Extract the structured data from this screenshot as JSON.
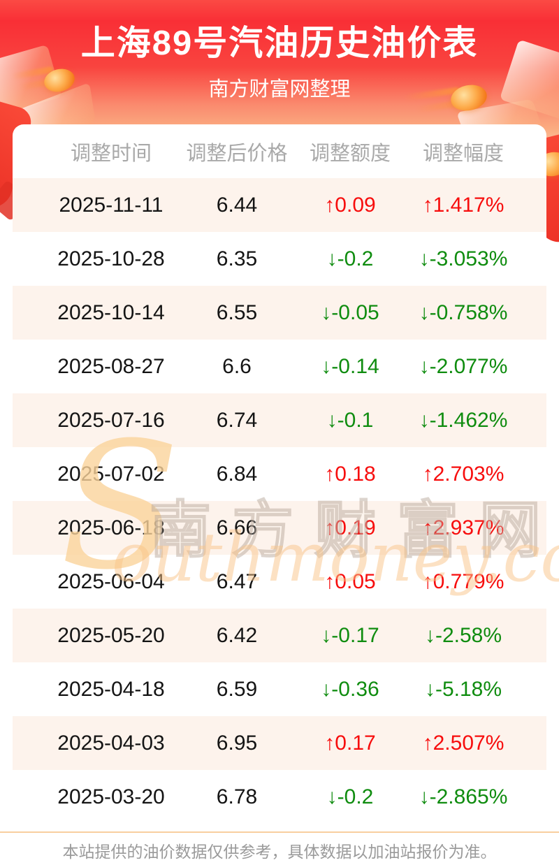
{
  "header": {
    "title": "上海89号汽油历史油价表",
    "subtitle": "南方财富网整理"
  },
  "table": {
    "columns": [
      "调整时间",
      "调整后价格",
      "调整额度",
      "调整幅度"
    ],
    "arrows": {
      "up": "↑",
      "down": "↓"
    },
    "rows": [
      {
        "date": "2025-11-11",
        "price": "6.44",
        "change": "0.09",
        "percent": "1.417%",
        "direction": "up"
      },
      {
        "date": "2025-10-28",
        "price": "6.35",
        "change": "-0.2",
        "percent": "-3.053%",
        "direction": "down"
      },
      {
        "date": "2025-10-14",
        "price": "6.55",
        "change": "-0.05",
        "percent": "-0.758%",
        "direction": "down"
      },
      {
        "date": "2025-08-27",
        "price": "6.6",
        "change": "-0.14",
        "percent": "-2.077%",
        "direction": "down"
      },
      {
        "date": "2025-07-16",
        "price": "6.74",
        "change": "-0.1",
        "percent": "-1.462%",
        "direction": "down"
      },
      {
        "date": "2025-07-02",
        "price": "6.84",
        "change": "0.18",
        "percent": "2.703%",
        "direction": "up"
      },
      {
        "date": "2025-06-18",
        "price": "6.66",
        "change": "0.19",
        "percent": "2.937%",
        "direction": "up"
      },
      {
        "date": "2025-06-04",
        "price": "6.47",
        "change": "0.05",
        "percent": "0.779%",
        "direction": "up"
      },
      {
        "date": "2025-05-20",
        "price": "6.42",
        "change": "-0.17",
        "percent": "-2.58%",
        "direction": "down"
      },
      {
        "date": "2025-04-18",
        "price": "6.59",
        "change": "-0.36",
        "percent": "-5.18%",
        "direction": "down"
      },
      {
        "date": "2025-04-03",
        "price": "6.95",
        "change": "0.17",
        "percent": "2.507%",
        "direction": "up"
      },
      {
        "date": "2025-03-20",
        "price": "6.78",
        "change": "-0.2",
        "percent": "-2.865%",
        "direction": "down"
      }
    ]
  },
  "watermark": {
    "big_letter": "S",
    "cn_text": "南方财富网",
    "en_text": "outhmoney.com"
  },
  "footer": {
    "disclaimer": "本站提供的油价数据仅供参考，具体数据以加油站报价为准。"
  },
  "colors": {
    "header_red_top": "#f92f36",
    "value_up_red": "#f70d0d",
    "value_down_green": "#0f8c0f",
    "row_alt_bg": "#fdf3ec",
    "column_header_text": "#a9a9a9",
    "footer_text": "#9a9a9a",
    "footer_divider": "#f8cf9f",
    "coin_orange": "#fdab4a"
  }
}
